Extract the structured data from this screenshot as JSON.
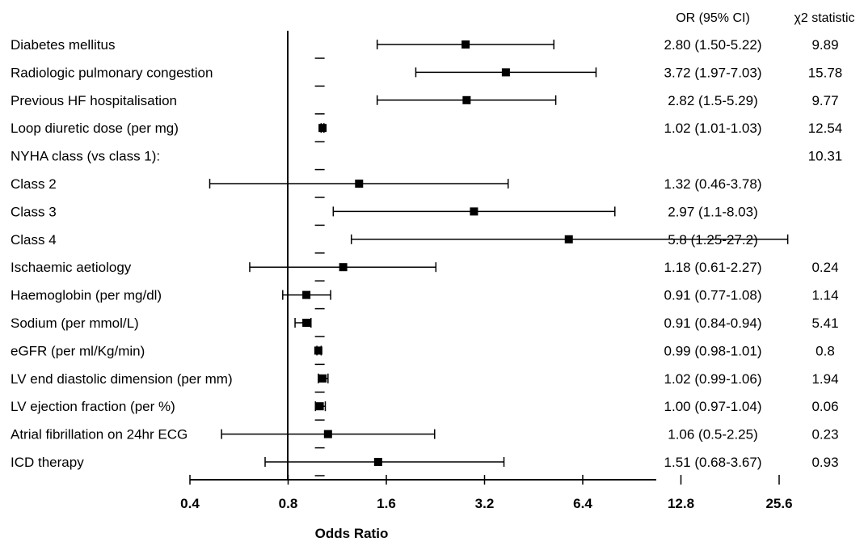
{
  "chart_data": {
    "type": "forest",
    "title": "",
    "xlabel": "Odds Ratio",
    "xscale": "log2",
    "xlim": [
      0.4,
      25.6
    ],
    "xticks": [
      "0.4",
      "0.8",
      "1.6",
      "3.2",
      "6.4",
      "12.8",
      "25.6"
    ],
    "reference_line": 1.0,
    "columns": {
      "or_header": "OR (95% CI)",
      "chi_header": "χ2 statistic"
    },
    "rows": [
      {
        "label": "Diabetes mellitus",
        "or": 2.8,
        "lo": 1.5,
        "hi": 5.22,
        "or_text": "2.80 (1.50-5.22)",
        "chi": "9.89"
      },
      {
        "label": "Radiologic pulmonary congestion",
        "or": 3.72,
        "lo": 1.97,
        "hi": 7.03,
        "or_text": "3.72 (1.97-7.03)",
        "chi": "15.78"
      },
      {
        "label": "Previous HF hospitalisation",
        "or": 2.82,
        "lo": 1.5,
        "hi": 5.29,
        "or_text": "2.82 (1.5-5.29)",
        "chi": "9.77"
      },
      {
        "label": "Loop diuretic dose (per mg)",
        "or": 1.02,
        "lo": 1.01,
        "hi": 1.03,
        "or_text": "1.02 (1.01-1.03)",
        "chi": "12.54"
      },
      {
        "label": "NYHA class (vs class 1):",
        "or": null,
        "lo": null,
        "hi": null,
        "or_text": "",
        "chi": "10.31"
      },
      {
        "label": "Class 2",
        "or": 1.32,
        "lo": 0.46,
        "hi": 3.78,
        "or_text": "1.32 (0.46-3.78)",
        "chi": ""
      },
      {
        "label": "Class 3",
        "or": 2.97,
        "lo": 1.1,
        "hi": 8.03,
        "or_text": "2.97 (1.1-8.03)",
        "chi": ""
      },
      {
        "label": "Class 4",
        "or": 5.8,
        "lo": 1.25,
        "hi": 27.2,
        "or_text": "5.8 (1.25-27.2)",
        "chi": ""
      },
      {
        "label": "Ischaemic aetiology",
        "or": 1.18,
        "lo": 0.61,
        "hi": 2.27,
        "or_text": "1.18 (0.61-2.27)",
        "chi": "0.24"
      },
      {
        "label": "Haemoglobin (per mg/dl)",
        "or": 0.91,
        "lo": 0.77,
        "hi": 1.08,
        "or_text": "0.91 (0.77-1.08)",
        "chi": "1.14"
      },
      {
        "label": "Sodium (per mmol/L)",
        "or": 0.91,
        "lo": 0.84,
        "hi": 0.94,
        "or_text": "0.91 (0.84-0.94)",
        "chi": "5.41"
      },
      {
        "label": "eGFR (per ml/Kg/min)",
        "or": 0.99,
        "lo": 0.98,
        "hi": 1.01,
        "or_text": "0.99 (0.98-1.01)",
        "chi": "0.8"
      },
      {
        "label": "LV end diastolic dimension (per mm)",
        "or": 1.02,
        "lo": 0.99,
        "hi": 1.06,
        "or_text": "1.02 (0.99-1.06)",
        "chi": "1.94"
      },
      {
        "label": "LV ejection fraction (per %)",
        "or": 1.0,
        "lo": 0.97,
        "hi": 1.04,
        "or_text": "1.00 (0.97-1.04)",
        "chi": "0.06"
      },
      {
        "label": "Atrial fibrillation on 24hr ECG",
        "or": 1.06,
        "lo": 0.5,
        "hi": 2.25,
        "or_text": "1.06 (0.5-2.25)",
        "chi": "0.23"
      },
      {
        "label": "ICD therapy",
        "or": 1.51,
        "lo": 0.68,
        "hi": 3.67,
        "or_text": "1.51 (0.68-3.67)",
        "chi": "0.93"
      }
    ]
  }
}
